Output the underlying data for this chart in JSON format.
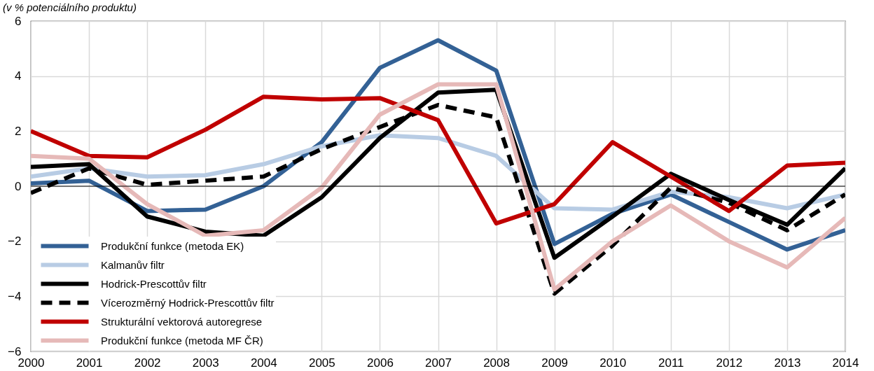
{
  "chart_data": {
    "type": "line",
    "title": "(v % potenciálního produktu)",
    "x": [
      2000,
      2001,
      2002,
      2003,
      2004,
      2005,
      2006,
      2007,
      2008,
      2009,
      2010,
      2011,
      2012,
      2013,
      2014
    ],
    "xlim": [
      2000,
      2014
    ],
    "xticks": [
      2000,
      2001,
      2002,
      2003,
      2004,
      2005,
      2006,
      2007,
      2008,
      2009,
      2010,
      2011,
      2012,
      2013,
      2014
    ],
    "ylim": [
      -6,
      6
    ],
    "yticks": [
      -6,
      -4,
      -2,
      0,
      2,
      4,
      6
    ],
    "grid": true,
    "legend": "bottom left",
    "line_style": "solid",
    "ref_lines": [
      {
        "axis": "y",
        "value": 0,
        "color": "#000000"
      }
    ],
    "series": [
      {
        "name": "Produkční funkce (metoda EK)",
        "color": "#336195",
        "values": [
          0.1,
          0.2,
          -0.9,
          -0.85,
          0,
          1.6,
          4.3,
          5.3,
          4.2,
          -2.1,
          -1.0,
          -0.3,
          -1.3,
          -2.3,
          -1.6
        ]
      },
      {
        "name": "Kalmanův filtr",
        "color": "#b8cce4",
        "values": [
          0.35,
          0.65,
          0.35,
          0.4,
          0.8,
          1.45,
          1.85,
          1.75,
          1.1,
          -0.8,
          -0.85,
          -0.2,
          -0.4,
          -0.8,
          -0.3
        ]
      },
      {
        "name": "Hodrick-Prescottův filtr",
        "color": "#000000",
        "values": [
          0.7,
          0.8,
          -1.1,
          -1.65,
          -1.8,
          -0.4,
          1.75,
          3.4,
          3.5,
          -2.6,
          -1.1,
          0.45,
          -0.5,
          -1.4,
          0.65
        ]
      },
      {
        "name": "Vícerozměrný Hodrick-Prescottův filtr",
        "color": "#000000",
        "line_style": "dashed",
        "values": [
          -0.25,
          0.65,
          0.05,
          0.2,
          0.35,
          1.35,
          2.15,
          2.95,
          2.5,
          -3.9,
          -2.15,
          -0.05,
          -0.6,
          -1.6,
          -0.3
        ]
      },
      {
        "name": "Strukturální vektorová autoregrese",
        "color": "#c00000",
        "values": [
          2.0,
          1.1,
          1.05,
          2.05,
          3.25,
          3.15,
          3.2,
          2.4,
          -1.35,
          -0.65,
          1.6,
          0.35,
          -0.9,
          0.75,
          0.85
        ]
      },
      {
        "name": "Produkční funkce (metoda MF ČR)",
        "color": "#e6b9b8",
        "values": [
          1.1,
          1.0,
          -0.65,
          -1.8,
          -1.6,
          -0.05,
          2.6,
          3.7,
          3.7,
          -3.75,
          -2.0,
          -0.7,
          -2.0,
          -2.95,
          -1.15
        ]
      }
    ]
  }
}
